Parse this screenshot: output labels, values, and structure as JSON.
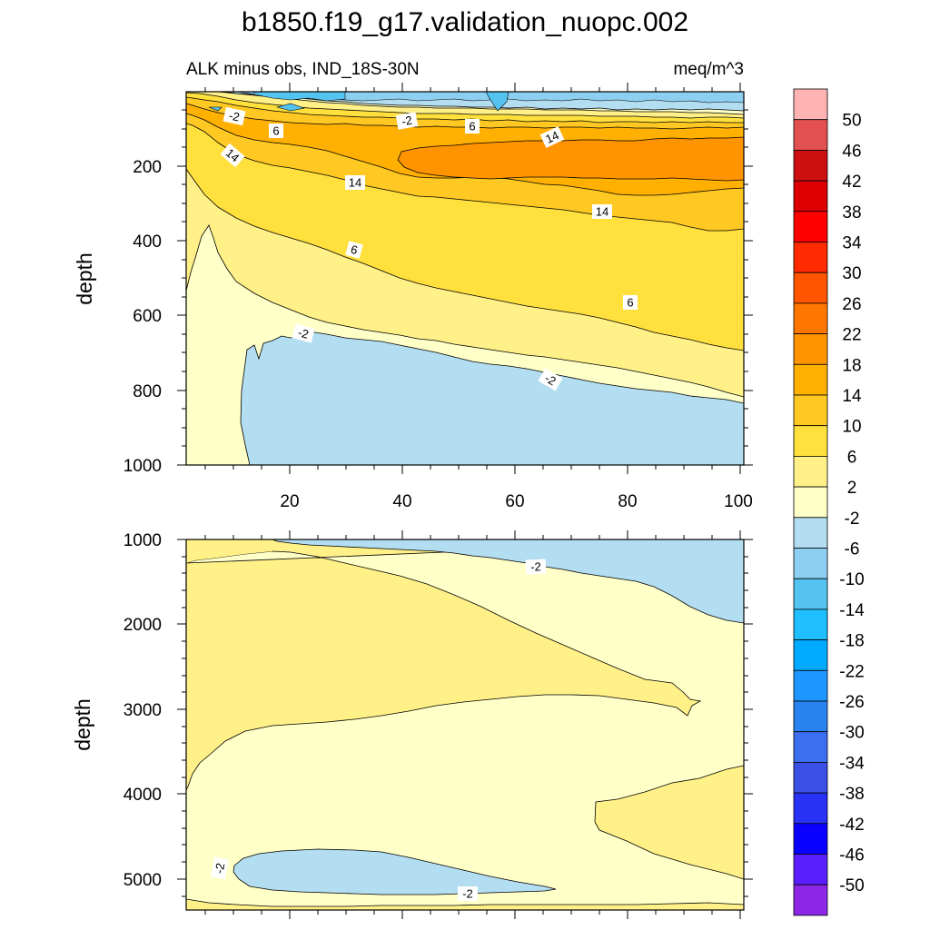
{
  "title": "b1850.f19_g17.validation_nuopc.002",
  "chart_data": [
    {
      "type": "contour",
      "panel": "upper",
      "left_label": "ALK minus obs, IND_18S-30N",
      "right_label": "meq/m^3",
      "ylabel": "depth",
      "xlabel": "",
      "x_ticks": [
        "20",
        "40",
        "60",
        "80",
        "100"
      ],
      "y_ticks": [
        "200",
        "400",
        "600",
        "800",
        "1000"
      ],
      "xlim": [
        0,
        101
      ],
      "ylim": [
        1000,
        0
      ],
      "grid": false,
      "contour_labels": [
        "-2",
        "-2",
        "6",
        "6",
        "14",
        "14",
        "14",
        "14",
        "6",
        "6",
        "-2",
        "-2"
      ]
    },
    {
      "type": "contour",
      "panel": "lower",
      "ylabel": "depth",
      "y_ticks": [
        "1000",
        "2000",
        "3000",
        "4000",
        "5000"
      ],
      "xlim": [
        0,
        101
      ],
      "ylim": [
        5350,
        1000
      ],
      "grid": false,
      "contour_labels": [
        "-2",
        "-2",
        "-2"
      ]
    }
  ],
  "colorbar": {
    "levels": [
      "50",
      "46",
      "42",
      "38",
      "34",
      "30",
      "26",
      "22",
      "18",
      "14",
      "10",
      "6",
      "2",
      "-2",
      "-6",
      "-10",
      "-14",
      "-18",
      "-22",
      "-26",
      "-30",
      "-34",
      "-38",
      "-42",
      "-46",
      "-50"
    ],
    "colors": [
      "#FFB3B3",
      "#E25050",
      "#CC1010",
      "#DD0000",
      "#FF0000",
      "#FF2A00",
      "#FF5500",
      "#FF7700",
      "#FF9300",
      "#FFB000",
      "#FFC823",
      "#FFE03C",
      "#FFF088",
      "#FFFFC8",
      "#B3DDF0",
      "#8CCFF0",
      "#55C3F0",
      "#1EBEFF",
      "#00AAFF",
      "#1E96FF",
      "#2882F0",
      "#3C6EF0",
      "#3C50E6",
      "#2832F5",
      "#0A00FF",
      "#5A1EFF",
      "#8C28E6"
    ],
    "placement": "right"
  }
}
